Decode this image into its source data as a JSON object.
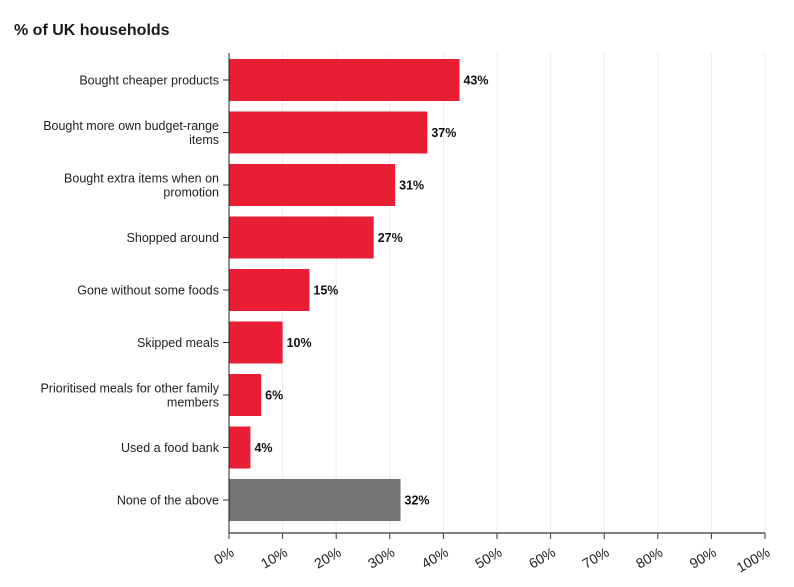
{
  "chart_data": {
    "type": "bar",
    "orientation": "horizontal",
    "title": "% of UK households",
    "categories": [
      [
        "Bought cheaper products"
      ],
      [
        "Bought more own budget-range",
        "items"
      ],
      [
        "Bought extra items when on",
        "promotion"
      ],
      [
        "Shopped around"
      ],
      [
        "Gone without some foods"
      ],
      [
        "Skipped meals"
      ],
      [
        "Prioritised meals for other family",
        "members"
      ],
      [
        "Used a food bank"
      ],
      [
        "None of the above"
      ]
    ],
    "values": [
      43,
      37,
      31,
      27,
      15,
      10,
      6,
      4,
      32
    ],
    "value_labels": [
      "43%",
      "37%",
      "31%",
      "27%",
      "15%",
      "10%",
      "6%",
      "4%",
      "32%"
    ],
    "bar_colors": [
      "#e81e34",
      "#e81e34",
      "#e81e34",
      "#e81e34",
      "#e81e34",
      "#e81e34",
      "#e81e34",
      "#e81e34",
      "#737373"
    ],
    "xlim": [
      0,
      100
    ],
    "xticks": [
      "0%",
      "10%",
      "20%",
      "30%",
      "40%",
      "50%",
      "60%",
      "70%",
      "80%",
      "90%",
      "100%"
    ],
    "grid": true
  }
}
